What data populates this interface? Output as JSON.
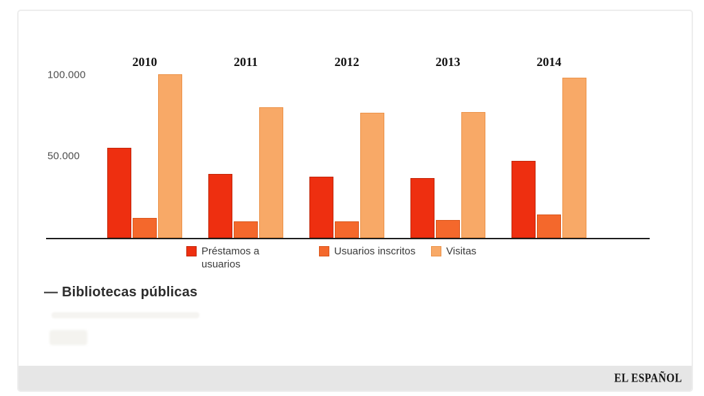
{
  "chart_data": {
    "type": "bar",
    "title": "",
    "categories": [
      "2010",
      "2011",
      "2012",
      "2013",
      "2014"
    ],
    "series": [
      {
        "name": "Préstamos a usuarios",
        "color": "#ee2f10",
        "border_color": "#c02508",
        "values": [
          55000,
          39000,
          37500,
          36500,
          47000
        ]
      },
      {
        "name": "Usuarios inscritos",
        "color": "#f4682c",
        "border_color": "#d9541a",
        "values": [
          12000,
          10000,
          10000,
          11000,
          14500
        ]
      },
      {
        "name": "Visitas",
        "color": "#f8a967",
        "border_color": "#eb9147",
        "values": [
          100000,
          80000,
          76500,
          77000,
          98000
        ]
      }
    ],
    "y_ticks": [
      {
        "value": 50000,
        "label": "50.000"
      },
      {
        "value": 100000,
        "label": "100.000"
      }
    ],
    "ylim": [
      0,
      110000
    ],
    "xlabel": "",
    "ylabel": "",
    "grid": false,
    "legend_position": "bottom"
  },
  "caption": {
    "title": "— Bibliotecas públicas"
  },
  "footer": {
    "brand": "EL ESPAÑOL"
  },
  "colors": {
    "footer_bar": "#e6e6e6",
    "axis": "#1c1c1c",
    "card_border": "#ededed"
  }
}
